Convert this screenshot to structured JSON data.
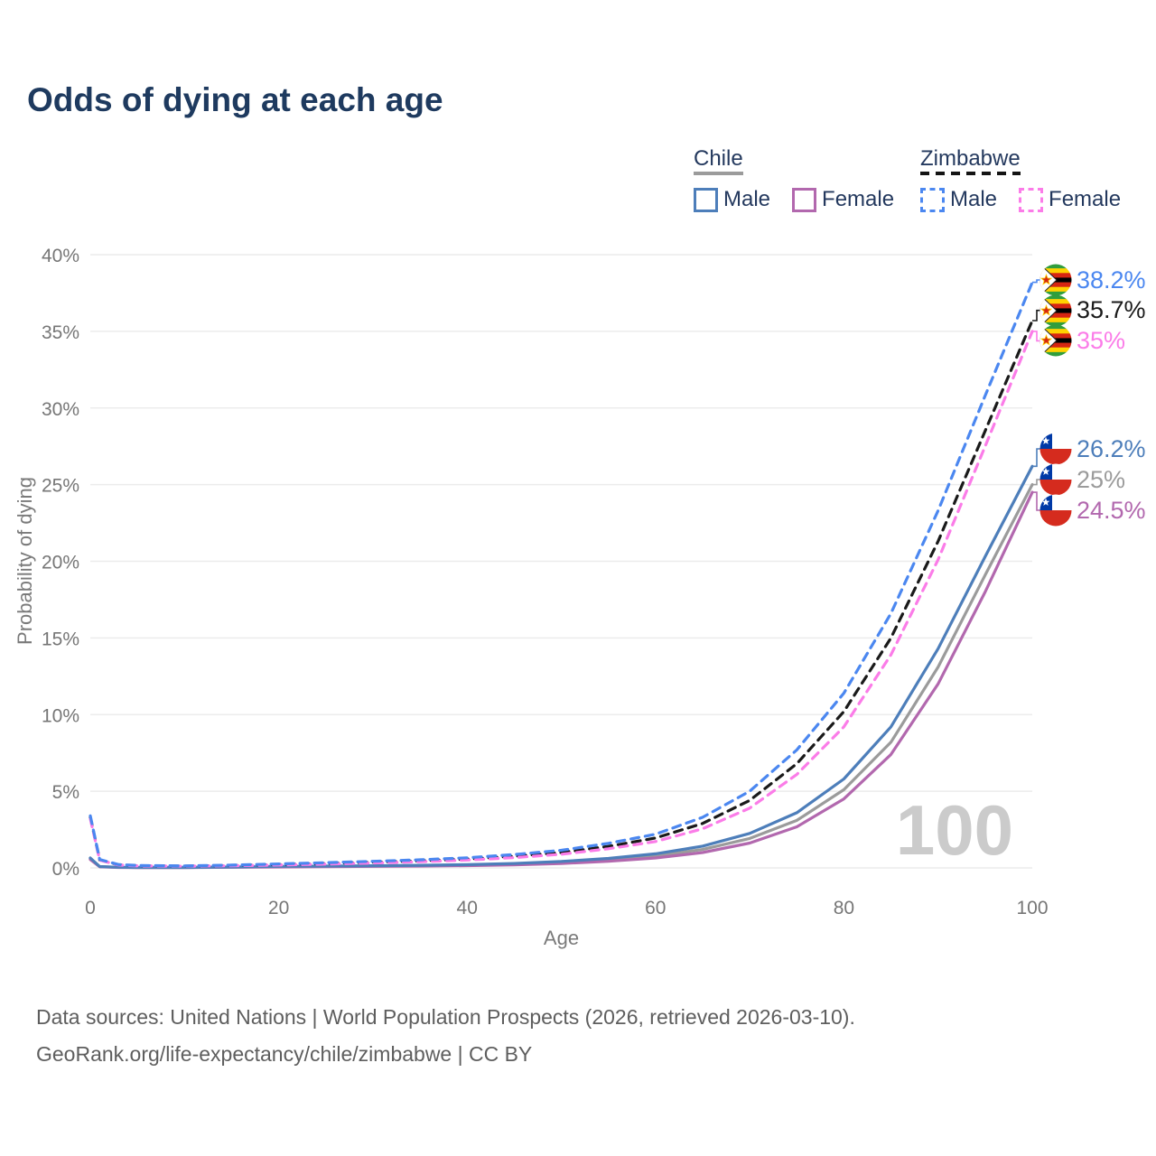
{
  "title": "Odds of dying at each age",
  "watermark_age": "100",
  "footer": {
    "line1": "Data sources: United Nations | World Population Prospects (2026, retrieved 2026-03-10).",
    "line2": "GeoRank.org/life-expectancy/chile/zimbabwe | CC BY"
  },
  "legend": {
    "groups": [
      {
        "name": "Chile",
        "line_style": "solid",
        "underline_color": "#9b9b9b",
        "items": [
          {
            "label": "Male",
            "color": "#4d7eba"
          },
          {
            "label": "Female",
            "color": "#b268ae"
          }
        ]
      },
      {
        "name": "Zimbabwe",
        "line_style": "dashed",
        "underline_color": "#141414",
        "items": [
          {
            "label": "Male",
            "color": "#4b87f0"
          },
          {
            "label": "Female",
            "color": "#fb7ce8"
          }
        ]
      }
    ]
  },
  "chart_data": {
    "type": "line",
    "title": "Odds of dying at each age",
    "xlabel": "Age",
    "ylabel": "Probability of dying",
    "xlim": [
      0,
      100
    ],
    "ylim": [
      0,
      40
    ],
    "xticks": [
      0,
      20,
      40,
      60,
      80,
      100
    ],
    "ytick_labels": [
      "0%",
      "5%",
      "10%",
      "15%",
      "20%",
      "25%",
      "30%",
      "35%",
      "40%"
    ],
    "grid": "horizontal",
    "legend_position": "top-right",
    "highlighted_age": "100",
    "series": [
      {
        "name": "Chile Both sexes",
        "country": "chile",
        "flag": "chile",
        "color": "#9b9b9b",
        "dashed": false,
        "end_label": "25%",
        "end_value": 25.0,
        "points": [
          [
            0,
            0.6
          ],
          [
            1,
            0.08
          ],
          [
            3,
            0.04
          ],
          [
            5,
            0.03
          ],
          [
            10,
            0.03
          ],
          [
            15,
            0.05
          ],
          [
            20,
            0.08
          ],
          [
            25,
            0.1
          ],
          [
            30,
            0.12
          ],
          [
            35,
            0.14
          ],
          [
            40,
            0.18
          ],
          [
            45,
            0.24
          ],
          [
            50,
            0.35
          ],
          [
            55,
            0.52
          ],
          [
            60,
            0.78
          ],
          [
            65,
            1.2
          ],
          [
            70,
            1.92
          ],
          [
            75,
            3.1
          ],
          [
            80,
            5.1
          ],
          [
            85,
            8.2
          ],
          [
            90,
            13.1
          ],
          [
            95,
            19.1
          ],
          [
            100,
            25.0
          ]
        ]
      },
      {
        "name": "Chile Female",
        "country": "chile",
        "flag": "chile",
        "color": "#b268ae",
        "dashed": false,
        "end_label": "24.5%",
        "end_value": 24.5,
        "points": [
          [
            0,
            0.55
          ],
          [
            1,
            0.07
          ],
          [
            3,
            0.03
          ],
          [
            5,
            0.02
          ],
          [
            10,
            0.02
          ],
          [
            15,
            0.04
          ],
          [
            20,
            0.06
          ],
          [
            25,
            0.08
          ],
          [
            30,
            0.1
          ],
          [
            35,
            0.12
          ],
          [
            40,
            0.15
          ],
          [
            45,
            0.2
          ],
          [
            50,
            0.29
          ],
          [
            55,
            0.43
          ],
          [
            60,
            0.65
          ],
          [
            65,
            1.0
          ],
          [
            70,
            1.62
          ],
          [
            75,
            2.68
          ],
          [
            80,
            4.5
          ],
          [
            85,
            7.4
          ],
          [
            90,
            12.0
          ],
          [
            95,
            18.0
          ],
          [
            100,
            24.5
          ]
        ]
      },
      {
        "name": "Chile Male",
        "country": "chile",
        "flag": "chile",
        "color": "#4d7eba",
        "dashed": false,
        "end_label": "26.2%",
        "end_value": 26.2,
        "points": [
          [
            0,
            0.65
          ],
          [
            1,
            0.09
          ],
          [
            3,
            0.04
          ],
          [
            5,
            0.03
          ],
          [
            10,
            0.03
          ],
          [
            15,
            0.06
          ],
          [
            20,
            0.1
          ],
          [
            25,
            0.12
          ],
          [
            30,
            0.14
          ],
          [
            35,
            0.17
          ],
          [
            40,
            0.21
          ],
          [
            45,
            0.29
          ],
          [
            50,
            0.42
          ],
          [
            55,
            0.62
          ],
          [
            60,
            0.92
          ],
          [
            65,
            1.42
          ],
          [
            70,
            2.25
          ],
          [
            75,
            3.6
          ],
          [
            80,
            5.8
          ],
          [
            85,
            9.2
          ],
          [
            90,
            14.3
          ],
          [
            95,
            20.3
          ],
          [
            100,
            26.2
          ]
        ]
      },
      {
        "name": "Zimbabwe Both sexes",
        "country": "zimbabwe",
        "flag": "zimbabwe",
        "color": "#1a1a1a",
        "dashed": true,
        "end_label": "35.7%",
        "end_value": 35.7,
        "points": [
          [
            0,
            3.3
          ],
          [
            1,
            0.52
          ],
          [
            3,
            0.2
          ],
          [
            5,
            0.14
          ],
          [
            10,
            0.12
          ],
          [
            15,
            0.16
          ],
          [
            20,
            0.22
          ],
          [
            25,
            0.29
          ],
          [
            30,
            0.37
          ],
          [
            35,
            0.46
          ],
          [
            40,
            0.58
          ],
          [
            45,
            0.76
          ],
          [
            50,
            1.0
          ],
          [
            55,
            1.4
          ],
          [
            60,
            1.95
          ],
          [
            65,
            2.9
          ],
          [
            70,
            4.4
          ],
          [
            75,
            6.8
          ],
          [
            80,
            10.2
          ],
          [
            85,
            15.0
          ],
          [
            90,
            21.3
          ],
          [
            95,
            28.5
          ],
          [
            100,
            35.7
          ]
        ]
      },
      {
        "name": "Zimbabwe Female",
        "country": "zimbabwe",
        "flag": "zimbabwe",
        "color": "#fb7ce8",
        "dashed": true,
        "end_label": "35%",
        "end_value": 35.0,
        "points": [
          [
            0,
            3.2
          ],
          [
            1,
            0.5
          ],
          [
            3,
            0.19
          ],
          [
            5,
            0.13
          ],
          [
            10,
            0.11
          ],
          [
            15,
            0.14
          ],
          [
            20,
            0.19
          ],
          [
            25,
            0.25
          ],
          [
            30,
            0.32
          ],
          [
            35,
            0.4
          ],
          [
            40,
            0.51
          ],
          [
            45,
            0.67
          ],
          [
            50,
            0.89
          ],
          [
            55,
            1.25
          ],
          [
            60,
            1.72
          ],
          [
            65,
            2.55
          ],
          [
            70,
            3.9
          ],
          [
            75,
            6.1
          ],
          [
            80,
            9.2
          ],
          [
            85,
            13.9
          ],
          [
            90,
            20.1
          ],
          [
            95,
            27.5
          ],
          [
            100,
            35.0
          ]
        ]
      },
      {
        "name": "Zimbabwe Male",
        "country": "zimbabwe",
        "flag": "zimbabwe",
        "color": "#4b87f0",
        "dashed": true,
        "end_label": "38.2%",
        "end_value": 38.2,
        "points": [
          [
            0,
            3.4
          ],
          [
            1,
            0.55
          ],
          [
            3,
            0.22
          ],
          [
            5,
            0.16
          ],
          [
            10,
            0.13
          ],
          [
            15,
            0.18
          ],
          [
            20,
            0.26
          ],
          [
            25,
            0.34
          ],
          [
            30,
            0.43
          ],
          [
            35,
            0.53
          ],
          [
            40,
            0.66
          ],
          [
            45,
            0.87
          ],
          [
            50,
            1.15
          ],
          [
            55,
            1.6
          ],
          [
            60,
            2.2
          ],
          [
            65,
            3.3
          ],
          [
            70,
            5.0
          ],
          [
            75,
            7.7
          ],
          [
            80,
            11.4
          ],
          [
            85,
            16.6
          ],
          [
            90,
            23.3
          ],
          [
            95,
            30.8
          ],
          [
            100,
            38.2
          ]
        ]
      }
    ]
  }
}
